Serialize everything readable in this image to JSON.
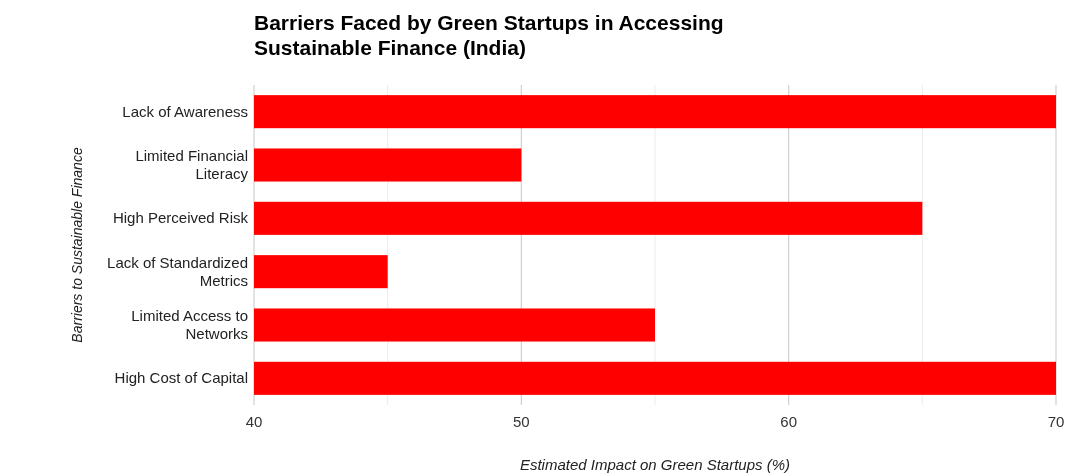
{
  "chart_data": {
    "type": "bar",
    "orientation": "horizontal",
    "title": "Barriers Faced by Green Startups in Accessing Sustainable Finance (India)",
    "xlabel": "Estimated Impact on Green Startups (%)",
    "ylabel": "Barriers to Sustainable Finance",
    "categories": [
      "Lack of Awareness",
      "Limited Financial Literacy",
      "High Perceived Risk",
      "Lack of Standardized Metrics",
      "Limited Access to Networks",
      "High Cost of Capital"
    ],
    "values": [
      70,
      50,
      65,
      45,
      55,
      70
    ],
    "color": "#ff0000",
    "xlim": [
      40,
      70
    ],
    "xticks": [
      40,
      50,
      60,
      70
    ],
    "grid": "x"
  }
}
